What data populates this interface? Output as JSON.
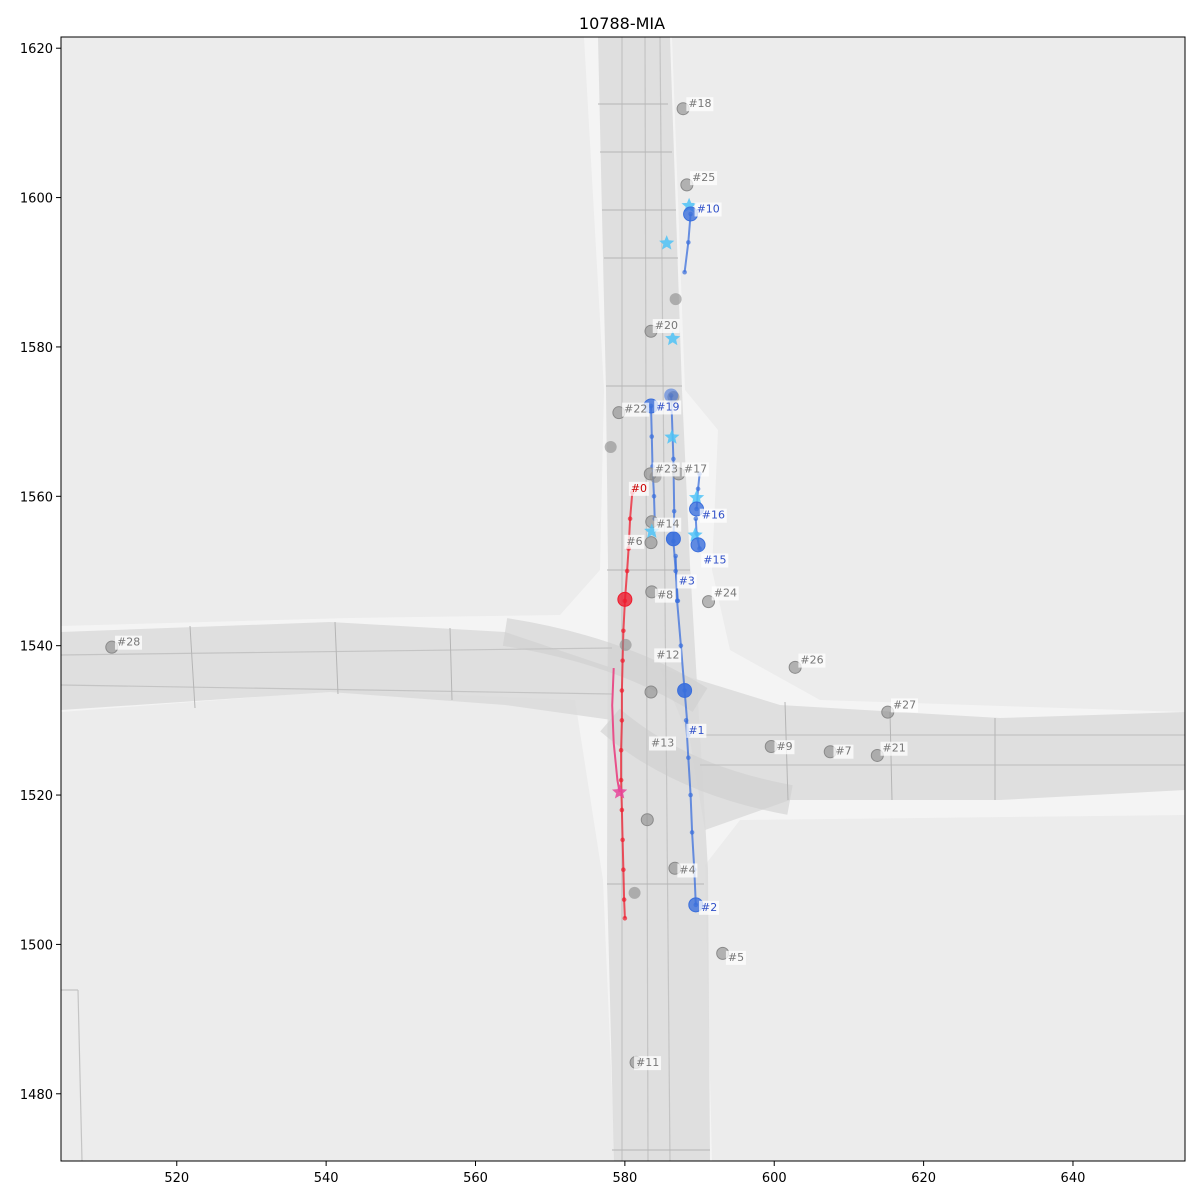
{
  "title": "10788-MIA",
  "chart_data": {
    "type": "scatter",
    "title": "10788-MIA",
    "xlim": [
      504.5,
      655
    ],
    "ylim": [
      1471,
      1621.5
    ],
    "x_ticks": [
      520,
      540,
      560,
      580,
      600,
      620,
      640
    ],
    "y_ticks": [
      1480,
      1500,
      1520,
      1540,
      1560,
      1580,
      1600,
      1620
    ],
    "colors": {
      "background": "#ffffff",
      "map_bg": "#ececec",
      "road": "#d8d8d8",
      "road_edge": "#bdbdbd",
      "focal": "#ee1c2e",
      "focal_future": "#e8508a",
      "focal_goal": "#e8449a",
      "interactive": "#3b6fdc",
      "interactive_goal": "#4fc3f7",
      "other": "#8a8a8a",
      "label_interactive": "#3050c8",
      "label_focal": "#cc0000"
    },
    "agents": [
      {
        "id": "#0",
        "role": "focal",
        "pos": [
          580,
          1546.2
        ],
        "label_pos": [
          580.8,
          1560.6
        ],
        "track": [
          [
            581,
            1560.5
          ],
          [
            580.7,
            1557
          ],
          [
            580.5,
            1553
          ],
          [
            580.3,
            1550
          ],
          [
            580,
            1546
          ],
          [
            579.8,
            1542
          ],
          [
            579.7,
            1538
          ],
          [
            579.6,
            1534
          ],
          [
            579.6,
            1530
          ],
          [
            579.5,
            1526
          ],
          [
            579.5,
            1522
          ],
          [
            579.6,
            1518
          ],
          [
            579.7,
            1514
          ],
          [
            579.8,
            1510
          ],
          [
            579.9,
            1506
          ],
          [
            580,
            1503.5
          ]
        ],
        "future": [
          [
            578.5,
            1537
          ],
          [
            578.3,
            1532
          ],
          [
            578.5,
            1527
          ],
          [
            579,
            1522
          ],
          [
            579.3,
            1520.4
          ]
        ],
        "goal": [
          579.3,
          1520.4
        ]
      },
      {
        "id": "#1",
        "role": "interactive",
        "pos": [
          588,
          1534
        ],
        "label_pos": [
          588.5,
          1528.2
        ],
        "track": [
          [
            588.5,
            1528
          ],
          [
            588,
            1534
          ],
          [
            587.5,
            1540
          ],
          [
            587,
            1546
          ],
          [
            586.8,
            1552
          ]
        ]
      },
      {
        "id": "#2",
        "role": "interactive",
        "pos": [
          589.5,
          1505.3
        ],
        "label_pos": [
          590.2,
          1504.5
        ],
        "track": [
          [
            589.5,
            1505.3
          ],
          [
            589.3,
            1510
          ],
          [
            589,
            1515
          ],
          [
            588.8,
            1520
          ],
          [
            588.5,
            1525
          ],
          [
            588.2,
            1530
          ]
        ]
      },
      {
        "id": "#3",
        "role": "interactive",
        "pos": [
          586.5,
          1554.3
        ],
        "label_pos": [
          587.2,
          1548.2
        ],
        "track": [
          [
            586.2,
            1573.5
          ],
          [
            586.5,
            1565
          ],
          [
            586.6,
            1558
          ],
          [
            586.5,
            1554
          ],
          [
            586.8,
            1550
          ],
          [
            587.1,
            1546
          ]
        ]
      },
      {
        "id": "#10",
        "role": "interactive",
        "pos": [
          588.8,
          1597.8
        ],
        "label_pos": [
          589.6,
          1598
        ],
        "track": [
          [
            588.8,
            1597.8
          ],
          [
            588.5,
            1594
          ],
          [
            588,
            1590
          ]
        ],
        "goal": [
          588.6,
          1598.9
        ]
      },
      {
        "id": "#15",
        "role": "interactive",
        "pos": [
          589.8,
          1553.5
        ],
        "label_pos": [
          590.5,
          1551
        ],
        "track": [
          [
            590,
            1553
          ],
          [
            589.6,
            1555
          ],
          [
            589.5,
            1557
          ]
        ],
        "goal": [
          589.4,
          1554.8
        ]
      },
      {
        "id": "#16",
        "role": "interactive",
        "pos": [
          589.6,
          1558.3
        ],
        "label_pos": [
          590.3,
          1557
        ],
        "track": [
          [
            589.6,
            1558.3
          ],
          [
            589.8,
            1561
          ],
          [
            590,
            1563
          ]
        ],
        "goal": [
          589.6,
          1559.8
        ]
      },
      {
        "id": "#19",
        "role": "interactive",
        "pos": [
          583.5,
          1572.1
        ],
        "label_pos": [
          584.2,
          1571.5
        ],
        "track": [
          [
            583.5,
            1572.1
          ],
          [
            583.6,
            1568
          ],
          [
            583.7,
            1564
          ],
          [
            583.9,
            1560
          ],
          [
            584,
            1557
          ]
        ]
      },
      {
        "id": "#4",
        "role": "other",
        "pos": [
          586.7,
          1510.2
        ],
        "label_pos": [
          587.3,
          1509.5
        ]
      },
      {
        "id": "#5",
        "role": "other",
        "pos": [
          593.1,
          1498.8
        ],
        "label_pos": [
          593.8,
          1497.8
        ]
      },
      {
        "id": "#6",
        "role": "other",
        "pos": [
          583.5,
          1553.8
        ],
        "label_pos": [
          580.2,
          1553.5
        ]
      },
      {
        "id": "#7",
        "role": "other",
        "pos": [
          607.5,
          1525.8
        ],
        "label_pos": [
          608.2,
          1525.4
        ]
      },
      {
        "id": "#8",
        "role": "other",
        "pos": [
          583.6,
          1547.2
        ],
        "label_pos": [
          584.3,
          1546.3
        ]
      },
      {
        "id": "#9",
        "role": "other",
        "pos": [
          599.6,
          1526.5
        ],
        "label_pos": [
          600.3,
          1526
        ]
      },
      {
        "id": "#11",
        "role": "other",
        "pos": [
          581.5,
          1484.2
        ],
        "label_pos": [
          581.5,
          1483.7
        ]
      },
      {
        "id": "#12",
        "role": "other",
        "pos": [
          583.5,
          1533.8
        ],
        "label_pos": [
          584.2,
          1538.3
        ]
      },
      {
        "id": "#13",
        "role": "other",
        "pos": [
          583,
          1516.7
        ],
        "label_pos": [
          583.5,
          1526.5
        ]
      },
      {
        "id": "#14",
        "role": "other",
        "pos": [
          583.6,
          1556.6
        ],
        "label_pos": [
          584.2,
          1555.8
        ]
      },
      {
        "id": "#17",
        "role": "other",
        "pos": [
          587.2,
          1563
        ],
        "label_pos": [
          587.9,
          1563.2
        ]
      },
      {
        "id": "#18",
        "role": "other",
        "pos": [
          587.8,
          1611.9
        ],
        "label_pos": [
          588.5,
          1612.1
        ]
      },
      {
        "id": "#20",
        "role": "other",
        "pos": [
          583.5,
          1582.1
        ],
        "label_pos": [
          584,
          1582.4
        ]
      },
      {
        "id": "#21",
        "role": "other",
        "pos": [
          613.8,
          1525.3
        ],
        "label_pos": [
          614.5,
          1525.8
        ]
      },
      {
        "id": "#22",
        "role": "other",
        "pos": [
          579.2,
          1571.2
        ],
        "label_pos": [
          579.9,
          1571.2
        ]
      },
      {
        "id": "#23",
        "role": "other",
        "pos": [
          583.4,
          1563
        ],
        "label_pos": [
          584,
          1563.2
        ]
      },
      {
        "id": "#24",
        "role": "other",
        "pos": [
          591.2,
          1545.9
        ],
        "label_pos": [
          591.9,
          1546.6
        ]
      },
      {
        "id": "#25",
        "role": "other",
        "pos": [
          588.3,
          1601.7
        ],
        "label_pos": [
          589,
          1602.2
        ]
      },
      {
        "id": "#26",
        "role": "other",
        "pos": [
          602.8,
          1537.1
        ],
        "label_pos": [
          603.5,
          1537.6
        ]
      },
      {
        "id": "#27",
        "role": "other",
        "pos": [
          615.2,
          1531.1
        ],
        "label_pos": [
          615.9,
          1531.6
        ]
      },
      {
        "id": "#28",
        "role": "other",
        "pos": [
          511.3,
          1539.8
        ],
        "label_pos": [
          512,
          1540
        ]
      }
    ],
    "extra_other_markers": [
      [
        584.1,
        1562.6
      ],
      [
        578.1,
        1566.6
      ],
      [
        580.1,
        1540.1
      ],
      [
        586.8,
        1586.4
      ],
      [
        586.5,
        1573.3
      ],
      [
        581.3,
        1506.9
      ]
    ],
    "extra_interactive_markers": [
      [
        588,
        1534
      ],
      [
        586.5,
        1554.3
      ],
      [
        586.2,
        1573.5
      ]
    ],
    "extra_goal_stars": [
      [
        585.6,
        1593.9
      ],
      [
        586.4,
        1581.1
      ],
      [
        586.3,
        1567.9
      ],
      [
        583.6,
        1555.3
      ]
    ]
  }
}
